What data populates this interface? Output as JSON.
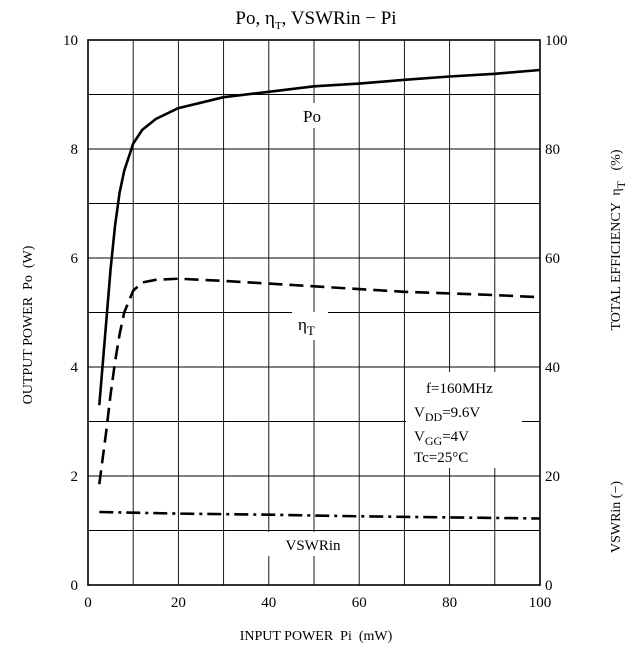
{
  "chart_data": {
    "type": "line",
    "title": "Po, ηT, VSWRin − Pi",
    "xlabel": "INPUT POWER  Pi  (mW)",
    "ylabel_left": "OUTPUT POWER  Po  (W)",
    "ylabel_right_1": {
      "main": "TOTAL EFFICIENCY  η",
      "sub": "T",
      "unit": "(%)"
    },
    "ylabel_right_2": "VSWRin (−)",
    "xlim": [
      0,
      100
    ],
    "ylim_left": [
      0,
      10
    ],
    "ylim_right": [
      0,
      100
    ],
    "x_ticks": [
      "0",
      "20",
      "40",
      "60",
      "80",
      "100"
    ],
    "y_ticks_left": [
      "0",
      "2",
      "4",
      "6",
      "8",
      "10"
    ],
    "y_ticks_right": [
      "0",
      "20",
      "40",
      "60",
      "80",
      "100"
    ],
    "grid": true,
    "series": [
      {
        "name": "Po",
        "axis": "left",
        "style": "solid",
        "x": [
          2.5,
          4,
          5,
          6,
          7,
          8,
          10,
          12,
          15,
          20,
          25,
          30,
          40,
          50,
          60,
          70,
          80,
          90,
          100
        ],
        "y": [
          3.3,
          4.8,
          5.8,
          6.6,
          7.2,
          7.6,
          8.1,
          8.35,
          8.55,
          8.75,
          8.85,
          8.95,
          9.05,
          9.15,
          9.2,
          9.27,
          9.33,
          9.38,
          9.45
        ]
      },
      {
        "name": "ηT",
        "axis": "right",
        "style": "dashed",
        "x": [
          2.5,
          4,
          5,
          6,
          7,
          8,
          10,
          12,
          15,
          20,
          30,
          40,
          50,
          60,
          70,
          80,
          90,
          100
        ],
        "y": [
          18.5,
          28,
          35,
          41,
          46,
          50,
          54,
          55.5,
          56,
          56.2,
          55.8,
          55.3,
          54.8,
          54.3,
          53.8,
          53.5,
          53.2,
          52.8
        ]
      },
      {
        "name": "VSWRin",
        "axis": "left",
        "style": "dash-dot",
        "x": [
          2.5,
          20,
          40,
          60,
          80,
          100
        ],
        "y": [
          1.34,
          1.31,
          1.29,
          1.26,
          1.24,
          1.22
        ]
      }
    ],
    "annotations": {
      "freq": "f=160MHz",
      "vdd": {
        "main": "V",
        "sub": "DD",
        "rest": "=9.6V"
      },
      "vgg": {
        "main": "V",
        "sub": "GG",
        "rest": "=4V"
      },
      "tc": "Tc=25°C"
    },
    "series_labels": {
      "po": "Po",
      "eta_main": "η",
      "eta_sub": "T",
      "vswr": "VSWRin"
    }
  }
}
